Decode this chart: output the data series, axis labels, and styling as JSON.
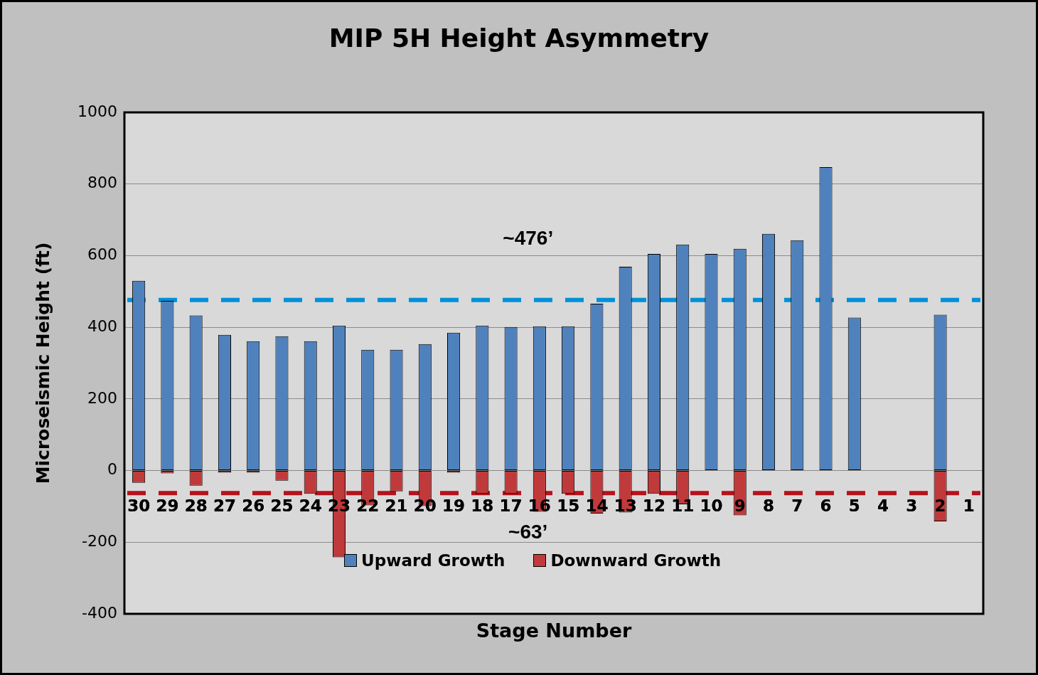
{
  "chart_data": {
    "type": "bar",
    "title": "MIP 5H Height Asymmetry",
    "xlabel": "Stage Number",
    "ylabel": "Microseismic Height (ft)",
    "categories": [
      "30",
      "29",
      "28",
      "27",
      "26",
      "25",
      "24",
      "23",
      "22",
      "21",
      "20",
      "19",
      "18",
      "17",
      "16",
      "15",
      "14",
      "13",
      "12",
      "11",
      "10",
      "9",
      "8",
      "7",
      "6",
      "5",
      "4",
      "3",
      "2",
      "1"
    ],
    "series": [
      {
        "name": "Upward Growth",
        "color": "#4f81bd",
        "values": [
          530,
          474,
          433,
          379,
          361,
          375,
          361,
          405,
          337,
          337,
          353,
          385,
          405,
          401,
          403,
          403,
          466,
          569,
          605,
          631,
          605,
          619,
          661,
          643,
          847,
          427,
          null,
          null,
          435,
          null
        ]
      },
      {
        "name": "Downward Growth",
        "color": "#c0393b",
        "values": [
          -34,
          -8,
          -42,
          -6,
          -6,
          -28,
          -65,
          -242,
          -97,
          -58,
          -99,
          -6,
          -65,
          -65,
          -115,
          -65,
          -120,
          -117,
          -65,
          -94,
          null,
          -125,
          null,
          null,
          null,
          null,
          null,
          null,
          -142,
          null
        ]
      }
    ],
    "stacked": true,
    "ylim": [
      -400,
      1000
    ],
    "yticks": [
      -400,
      -200,
      0,
      200,
      400,
      600,
      800,
      {
        "value": 1000,
        "label": "1000"
      }
    ],
    "grid": "y",
    "legend": "bottom",
    "ref_lines": [
      {
        "axis": "y",
        "value": 476,
        "label": "~476’",
        "color": "#0090d8",
        "line_style": "dashed"
      },
      {
        "axis": "y",
        "value": -63,
        "label": "~63’",
        "color": "#b5121b",
        "line_style": "dashed"
      }
    ]
  }
}
